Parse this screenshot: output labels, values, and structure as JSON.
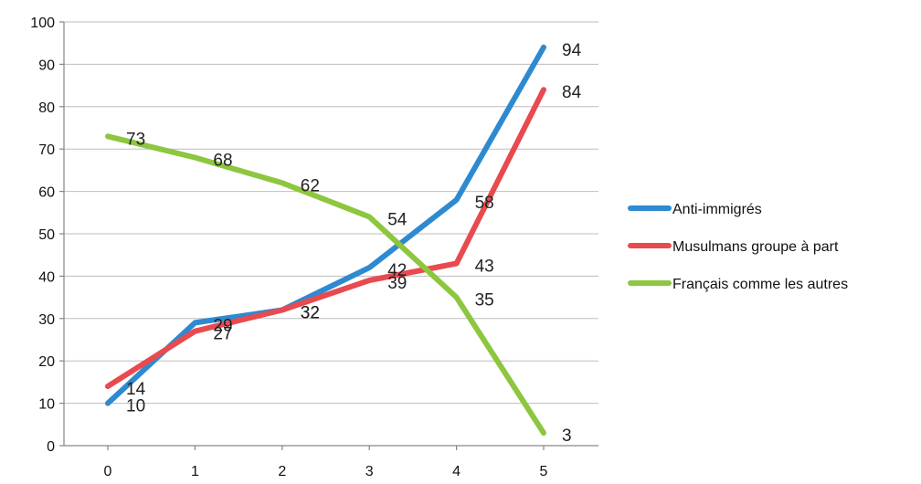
{
  "chart_data": {
    "type": "line",
    "x": [
      0,
      1,
      2,
      3,
      4,
      5
    ],
    "ylim": [
      0,
      100
    ],
    "yticks": [
      0,
      10,
      20,
      30,
      40,
      50,
      60,
      70,
      80,
      90,
      100
    ],
    "grid": true,
    "legend_position": "right",
    "series": [
      {
        "name": "Anti-immigrés",
        "color": "#2e8ad0",
        "values": [
          10,
          29,
          32,
          42,
          58,
          94
        ]
      },
      {
        "name": "Musulmans groupe à part",
        "color": "#e84a4f",
        "values": [
          14,
          27,
          32,
          39,
          43,
          84
        ]
      },
      {
        "name": "Français comme les autres",
        "color": "#8dc63f",
        "values": [
          73,
          68,
          62,
          54,
          35,
          3
        ]
      }
    ]
  }
}
